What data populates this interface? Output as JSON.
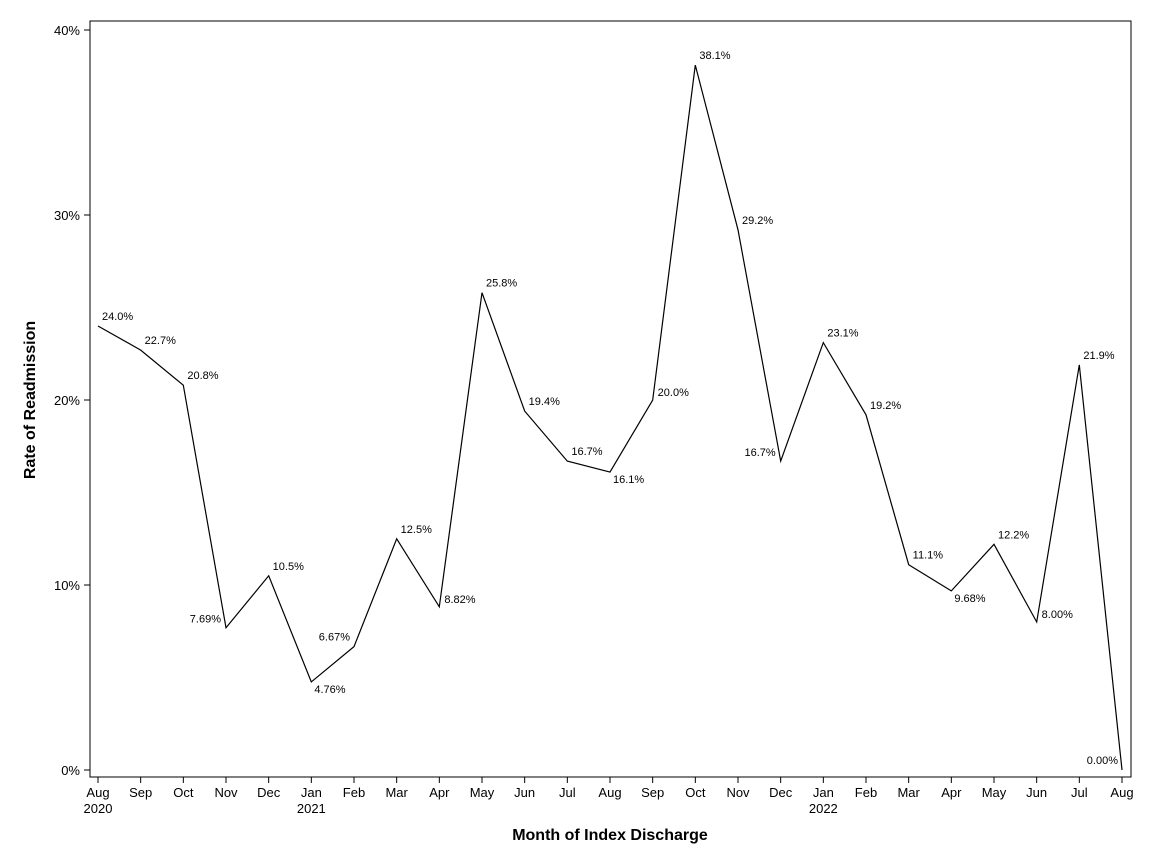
{
  "chart_data": {
    "type": "line",
    "title": "",
    "xlabel": "Month of Index Discharge",
    "ylabel": "Rate of Readmission",
    "ylim": [
      0,
      40
    ],
    "yticks": [
      {
        "value": 0,
        "label": "0%"
      },
      {
        "value": 10,
        "label": "10%"
      },
      {
        "value": 20,
        "label": "20%"
      },
      {
        "value": 30,
        "label": "30%"
      },
      {
        "value": 40,
        "label": "40%"
      }
    ],
    "categories": [
      "Aug",
      "Sep",
      "Oct",
      "Nov",
      "Dec",
      "Jan",
      "Feb",
      "Mar",
      "Apr",
      "May",
      "Jun",
      "Jul",
      "Aug",
      "Sep",
      "Oct",
      "Nov",
      "Dec",
      "Jan",
      "Feb",
      "Mar",
      "Apr",
      "May",
      "Jun",
      "Jul",
      "Aug"
    ],
    "year_labels": [
      "2020",
      "",
      "",
      "",
      "",
      "2021",
      "",
      "",
      "",
      "",
      "",
      "",
      "",
      "",
      "",
      "",
      "",
      "2022",
      "",
      "",
      "",
      "",
      "",
      "",
      ""
    ],
    "values": [
      24.0,
      22.7,
      20.8,
      7.69,
      10.5,
      4.76,
      6.67,
      12.5,
      8.82,
      25.8,
      19.4,
      16.7,
      16.1,
      20.0,
      38.1,
      29.2,
      16.7,
      23.1,
      19.2,
      11.1,
      9.68,
      12.2,
      8.0,
      21.9,
      0.0
    ],
    "point_labels": [
      "24.0%",
      "22.7%",
      "20.8%",
      "7.69%",
      "10.5%",
      "4.76%",
      "6.67%",
      "12.5%",
      "8.82%",
      "25.8%",
      "19.4%",
      "16.7%",
      "16.1%",
      "20.0%",
      "38.1%",
      "29.2%",
      "16.7%",
      "23.1%",
      "19.2%",
      "11.1%",
      "9.68%",
      "12.2%",
      "8.00%",
      "21.9%",
      "0.00%"
    ],
    "label_positions": [
      "upper-right",
      "upper-right",
      "upper-right",
      "left",
      "upper-right",
      "below",
      "upper-left",
      "upper-right",
      "right",
      "upper-right",
      "upper-right",
      "upper-right",
      "below",
      "right",
      "upper-right",
      "upper-right",
      "left",
      "upper-right",
      "upper-right",
      "upper-right",
      "below",
      "upper-right",
      "right",
      "upper-right",
      "upper-left"
    ],
    "series": [
      {
        "name": "Rate of Readmission",
        "color": "#000000"
      }
    ],
    "grid": false,
    "legend": "none"
  }
}
